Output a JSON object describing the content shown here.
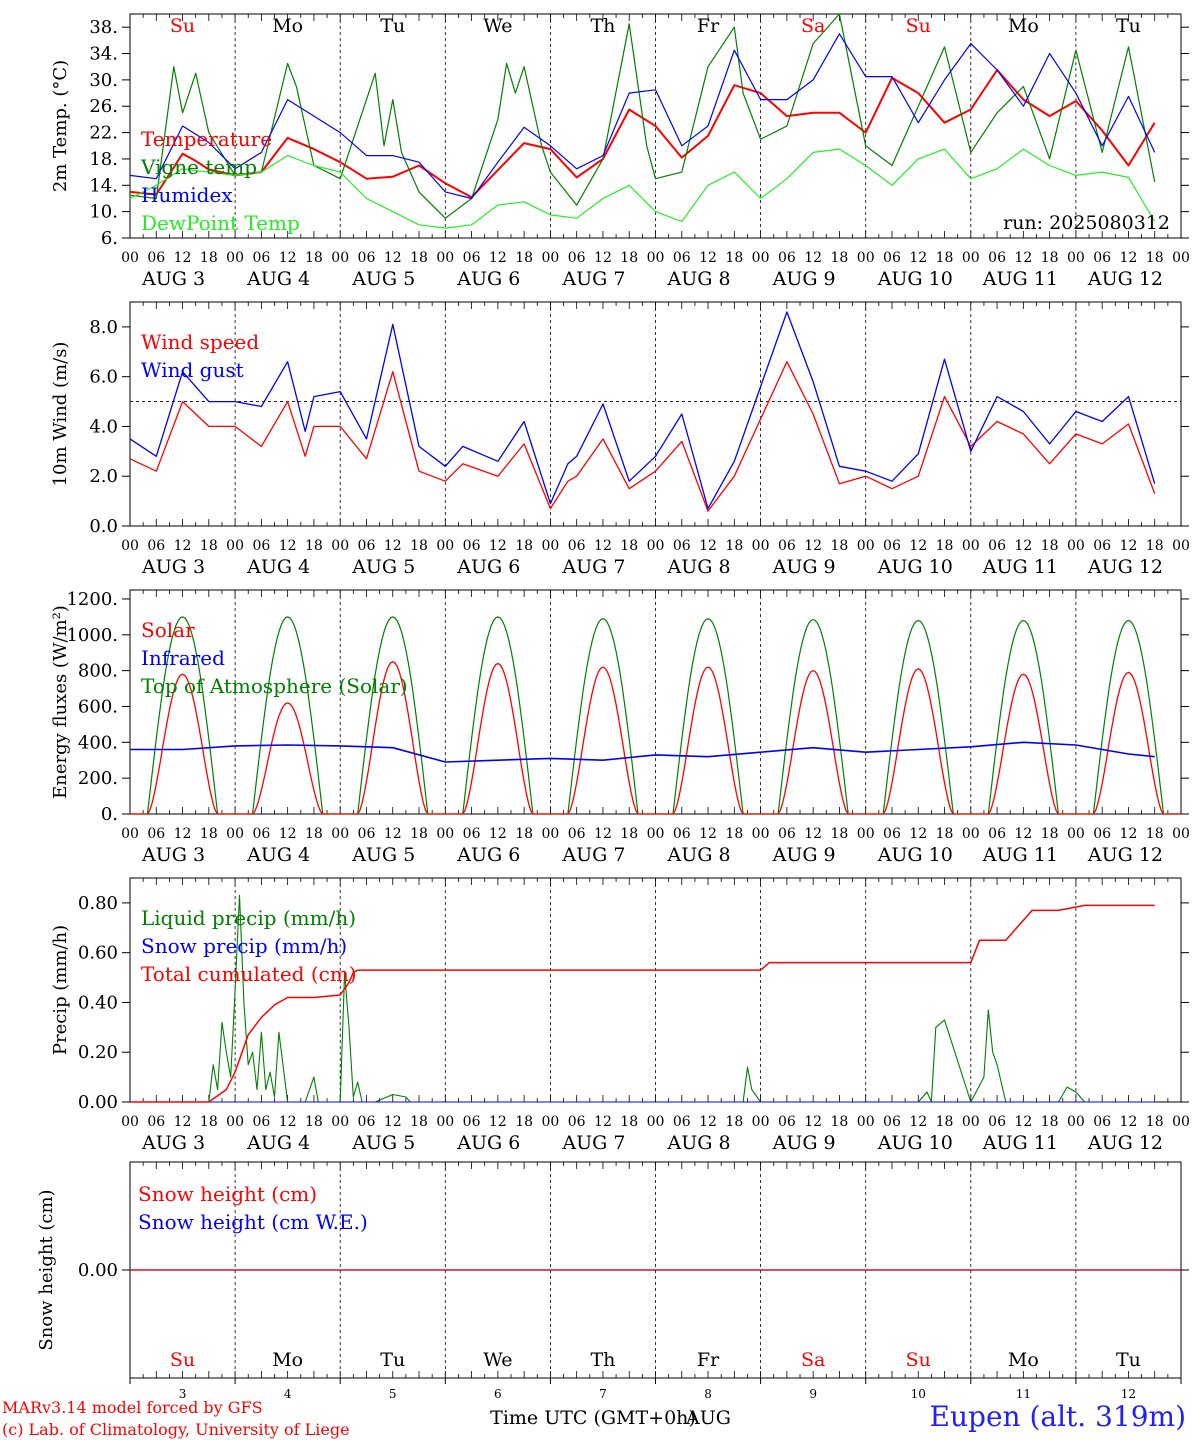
{
  "footer": {
    "credit1": "MARv3.14 model forced by GFS",
    "credit2": "(c) Lab. of Climatology, University of Liege",
    "xlabel": "Time UTC (GMT+0h)",
    "month": "AUG",
    "station": "Eupen (alt. 319m)"
  },
  "run_label": "run: 2025080312",
  "colors": {
    "red": "#ff0000",
    "green": "#008000",
    "blue": "#0000ff",
    "lightgreen": "#22ee22",
    "axis": "#000000"
  },
  "chart_data": [
    {
      "type": "line",
      "id": "temperature",
      "ylabel": "2m Temp. (°C)",
      "ylim": [
        6,
        40
      ],
      "yticks": [
        6,
        10,
        14,
        18,
        22,
        26,
        30,
        34,
        38
      ],
      "ytick_labels": [
        "6.",
        "10.",
        "14.",
        "18.",
        "22.",
        "26.",
        "30.",
        "34.",
        "38."
      ],
      "days": [
        "Su",
        "Mo",
        "Tu",
        "We",
        "Th",
        "Fr",
        "Sa",
        "Su",
        "Mo",
        "Tu"
      ],
      "day_colors": [
        "red",
        "black",
        "black",
        "black",
        "black",
        "black",
        "red",
        "red",
        "black",
        "black"
      ],
      "hour_ticks": [
        "00",
        "06",
        "12",
        "18"
      ],
      "date_labels": [
        "AUG  3",
        "AUG  4",
        "AUG  5",
        "AUG  6",
        "AUG  7",
        "AUG  8",
        "AUG  9",
        "AUG 10",
        "AUG 11",
        "AUG 12"
      ],
      "x_unit": "hours since AUG 3 00 UTC",
      "series": [
        {
          "name": "Temperature",
          "color": "#ff0000",
          "x": [
            0,
            6,
            12,
            15,
            18,
            24,
            30,
            36,
            42,
            48,
            54,
            60,
            66,
            72,
            78,
            84,
            90,
            96,
            102,
            108,
            114,
            120,
            126,
            132,
            138,
            144,
            150,
            156,
            162,
            168,
            174,
            180,
            186,
            192,
            198,
            204,
            210,
            216,
            222,
            228,
            234
          ],
          "y": [
            13,
            12.6,
            18.8,
            17.7,
            16.4,
            15.5,
            16,
            21.2,
            19.5,
            17.5,
            15,
            15.3,
            17,
            14.3,
            12.2,
            16.3,
            20.4,
            19.5,
            15.2,
            18,
            25.5,
            23,
            18.2,
            21.5,
            29.2,
            28,
            24.5,
            25,
            25,
            22,
            30.3,
            28,
            23.5,
            25.5,
            31.5,
            27,
            24.5,
            26.8,
            22.3,
            17,
            23.5
          ]
        },
        {
          "name": "Vigne temp",
          "color": "#008000",
          "x": [
            0,
            6,
            10,
            12,
            15,
            18,
            24,
            30,
            36,
            38,
            42,
            48,
            56,
            58,
            60,
            62,
            66,
            72,
            78,
            84,
            86,
            88,
            90,
            94,
            96,
            102,
            108,
            114,
            118,
            120,
            126,
            132,
            138,
            140,
            144,
            150,
            156,
            162,
            168,
            174,
            180,
            186,
            192,
            198,
            204,
            210,
            216,
            222,
            228,
            234
          ],
          "y": [
            12.5,
            12,
            32,
            25,
            31,
            22,
            15.5,
            16,
            32.5,
            29,
            17,
            15,
            31,
            20,
            27,
            19,
            13,
            9,
            12,
            24,
            32.5,
            28,
            32,
            20,
            16,
            11,
            18,
            38.5,
            20,
            15,
            16,
            32,
            38,
            28,
            21,
            23,
            35.5,
            40,
            20,
            17,
            26,
            35,
            19,
            25,
            29,
            18,
            34.5,
            19,
            35,
            14.5
          ]
        },
        {
          "name": "Humidex",
          "color": "#0000ff",
          "x": [
            0,
            6,
            12,
            18,
            24,
            30,
            36,
            42,
            48,
            54,
            60,
            66,
            72,
            78,
            84,
            90,
            96,
            102,
            108,
            114,
            120,
            126,
            132,
            138,
            144,
            150,
            156,
            162,
            168,
            174,
            180,
            186,
            192,
            198,
            204,
            210,
            216,
            222,
            228,
            234
          ],
          "y": [
            15.5,
            15,
            23,
            20.5,
            16.5,
            19,
            27,
            24.5,
            22,
            18.5,
            18.5,
            17.5,
            13,
            12,
            17.5,
            22.8,
            20,
            16.5,
            18.5,
            28,
            28.5,
            20,
            23,
            34.5,
            27,
            27,
            30,
            37,
            30.5,
            30.5,
            23.5,
            30,
            35.5,
            31.5,
            26,
            34,
            28,
            20,
            27.5,
            19
          ]
        },
        {
          "name": "DewPoint Temp",
          "color": "#22ee22",
          "x": [
            0,
            6,
            12,
            18,
            24,
            30,
            36,
            42,
            48,
            54,
            60,
            66,
            72,
            78,
            84,
            90,
            96,
            102,
            108,
            114,
            120,
            126,
            132,
            138,
            144,
            150,
            156,
            162,
            168,
            174,
            180,
            186,
            192,
            198,
            204,
            210,
            216,
            222,
            228,
            234
          ],
          "y": [
            12,
            14,
            16.5,
            16,
            15.5,
            16,
            18.5,
            17,
            16,
            12,
            10,
            8,
            7.5,
            8,
            11,
            11.5,
            9.5,
            9,
            12,
            14,
            10,
            8.5,
            14,
            16,
            12,
            15,
            19,
            19.5,
            17,
            14,
            18,
            19.5,
            15,
            16.5,
            19.5,
            17,
            15.5,
            16,
            15.2,
            8.5
          ]
        }
      ],
      "legend": [
        "Temperature",
        "Vigne temp",
        "Humidex",
        "DewPoint Temp"
      ]
    },
    {
      "type": "line",
      "id": "wind",
      "ylabel": "10m Wind (m/s)",
      "ylim": [
        0,
        9
      ],
      "yticks": [
        0,
        2,
        4,
        6,
        8
      ],
      "ytick_labels": [
        "0.0",
        "2.0",
        "4.0",
        "6.0",
        "8.0"
      ],
      "reference_line": 5,
      "x_unit": "hours since AUG 3 00 UTC",
      "series": [
        {
          "name": "Wind speed",
          "color": "#ff0000",
          "x": [
            0,
            6,
            12,
            18,
            24,
            30,
            36,
            40,
            42,
            48,
            54,
            60,
            66,
            72,
            76,
            84,
            90,
            96,
            100,
            102,
            108,
            114,
            120,
            126,
            132,
            138,
            144,
            150,
            156,
            162,
            168,
            174,
            180,
            186,
            192,
            198,
            204,
            210,
            216,
            222,
            228,
            234
          ],
          "y": [
            2.7,
            2.2,
            5,
            4,
            4,
            3.2,
            5,
            2.8,
            4,
            4,
            2.7,
            6.2,
            2.2,
            1.8,
            2.5,
            2,
            3.3,
            0.7,
            1.8,
            2,
            3.5,
            1.5,
            2.2,
            3.4,
            0.6,
            2,
            4.3,
            6.6,
            4.5,
            1.7,
            2,
            1.5,
            2,
            5.2,
            3.2,
            4.2,
            3.7,
            2.5,
            3.7,
            3.3,
            4.1,
            1.3
          ]
        },
        {
          "name": "Wind gust",
          "color": "#0000ff",
          "x": [
            0,
            6,
            12,
            18,
            24,
            30,
            36,
            40,
            42,
            48,
            54,
            60,
            66,
            72,
            76,
            84,
            90,
            96,
            100,
            102,
            108,
            114,
            120,
            126,
            132,
            138,
            144,
            150,
            156,
            162,
            168,
            174,
            180,
            186,
            192,
            198,
            204,
            210,
            216,
            222,
            228,
            234
          ],
          "y": [
            3.5,
            2.8,
            6.2,
            5,
            5,
            4.8,
            6.6,
            3.8,
            5.2,
            5.4,
            3.5,
            8.1,
            3.2,
            2.4,
            3.2,
            2.6,
            4.2,
            0.9,
            2.5,
            2.8,
            4.9,
            1.8,
            2.8,
            4.5,
            0.7,
            2.6,
            5.6,
            8.6,
            5.8,
            2.4,
            2.2,
            1.8,
            2.9,
            6.7,
            3,
            5.2,
            4.6,
            3.3,
            4.6,
            4.2,
            5.2,
            1.7
          ]
        }
      ],
      "legend": [
        "Wind speed",
        "Wind gust"
      ]
    },
    {
      "type": "line",
      "id": "energy",
      "ylabel": "Energy fluxes (W/m²)",
      "ylim": [
        0,
        1250
      ],
      "yticks": [
        0,
        200,
        400,
        600,
        800,
        1000,
        1200
      ],
      "ytick_labels": [
        "0.",
        "200.",
        "400.",
        "600.",
        "800.",
        "1000.",
        "1200."
      ],
      "x_unit": "hours since AUG 3 00 UTC",
      "solar_daily_peak": [
        780,
        620,
        850,
        840,
        820,
        820,
        800,
        810,
        780,
        790
      ],
      "toa_daily_peak": [
        1100,
        1100,
        1100,
        1100,
        1090,
        1090,
        1085,
        1080,
        1080,
        1080
      ],
      "infrared": {
        "x": [
          0,
          12,
          24,
          36,
          48,
          60,
          72,
          84,
          96,
          108,
          120,
          132,
          144,
          156,
          168,
          180,
          192,
          204,
          216,
          228,
          234
        ],
        "y": [
          360,
          360,
          380,
          385,
          380,
          370,
          290,
          300,
          310,
          300,
          330,
          320,
          345,
          370,
          345,
          360,
          375,
          400,
          385,
          335,
          320
        ]
      },
      "series_names": [
        "Solar",
        "Infrared",
        "Top of Atmosphere (Solar)"
      ],
      "legend": [
        "Solar",
        "Infrared",
        "Top of Atmosphere (Solar)"
      ]
    },
    {
      "type": "line",
      "id": "precip",
      "ylabel": "Precip (mm/h)",
      "ylim": [
        0,
        0.9
      ],
      "yticks": [
        0,
        0.2,
        0.4,
        0.6,
        0.8
      ],
      "ytick_labels": [
        "0.00",
        "0.20",
        "0.40",
        "0.60",
        "0.80"
      ],
      "x_unit": "hours since AUG 3 00 UTC",
      "series": [
        {
          "name": "Liquid precip (mm/h)",
          "color": "#008000",
          "x": [
            0,
            18,
            19,
            20,
            21,
            22,
            23,
            24,
            25,
            26,
            27,
            28,
            29,
            30,
            31,
            32,
            33,
            34,
            36,
            40,
            42,
            43,
            44,
            48,
            49,
            50,
            51,
            52,
            53,
            54,
            56,
            60,
            63,
            64,
            66,
            126,
            140,
            141,
            142,
            144,
            180,
            182,
            183,
            184,
            186,
            192,
            195,
            196,
            197,
            198,
            200,
            212,
            214,
            216,
            218,
            234
          ],
          "y": [
            0,
            0,
            0.15,
            0.05,
            0.32,
            0.2,
            0.1,
            0.45,
            0.83,
            0.4,
            0.15,
            0.2,
            0.05,
            0.28,
            0.05,
            0.12,
            0.02,
            0.28,
            0,
            0,
            0.1,
            0,
            0,
            0,
            0.52,
            0.3,
            0.02,
            0.08,
            0,
            0,
            0,
            0.03,
            0.02,
            0,
            0,
            0,
            0,
            0.14,
            0.05,
            0,
            0,
            0.04,
            0,
            0.3,
            0.33,
            0,
            0.1,
            0.37,
            0.2,
            0.15,
            0,
            0,
            0.06,
            0.04,
            0,
            0
          ]
        },
        {
          "name": "Snow precip (mm/h)",
          "color": "#0000ff",
          "x": [
            0,
            234
          ],
          "y": [
            0,
            0
          ]
        },
        {
          "name": "Total cumulated (cm)",
          "color": "#ff0000",
          "x": [
            0,
            18,
            22,
            24,
            27,
            30,
            33,
            36,
            42,
            48,
            50,
            51,
            52,
            54,
            144,
            146,
            192,
            194,
            200,
            206,
            212,
            218,
            234
          ],
          "y": [
            0,
            0,
            0.05,
            0.12,
            0.27,
            0.34,
            0.39,
            0.42,
            0.42,
            0.43,
            0.48,
            0.52,
            0.53,
            0.53,
            0.53,
            0.56,
            0.56,
            0.65,
            0.65,
            0.77,
            0.77,
            0.79,
            0.79
          ]
        }
      ],
      "legend": [
        "Liquid precip (mm/h)",
        "Snow precip (mm/h)",
        "Total cumulated (cm)"
      ]
    },
    {
      "type": "line",
      "id": "snow",
      "ylabel": "Snow height (cm)",
      "yticks": [
        0
      ],
      "ytick_labels": [
        "0.00"
      ],
      "series": [
        {
          "name": "Snow height (cm)",
          "color": "#ff0000",
          "x": [
            0,
            234
          ],
          "y": [
            0,
            0
          ]
        },
        {
          "name": "Snow height (cm W.E.)",
          "color": "#0000ff",
          "x": [
            0,
            234
          ],
          "y": [
            0,
            0
          ]
        }
      ],
      "legend": [
        "Snow height (cm)",
        "Snow height (cm W.E.)"
      ],
      "day_numbers": [
        "3",
        "4",
        "5",
        "6",
        "7",
        "8",
        "9",
        "10",
        "11",
        "12"
      ]
    }
  ]
}
